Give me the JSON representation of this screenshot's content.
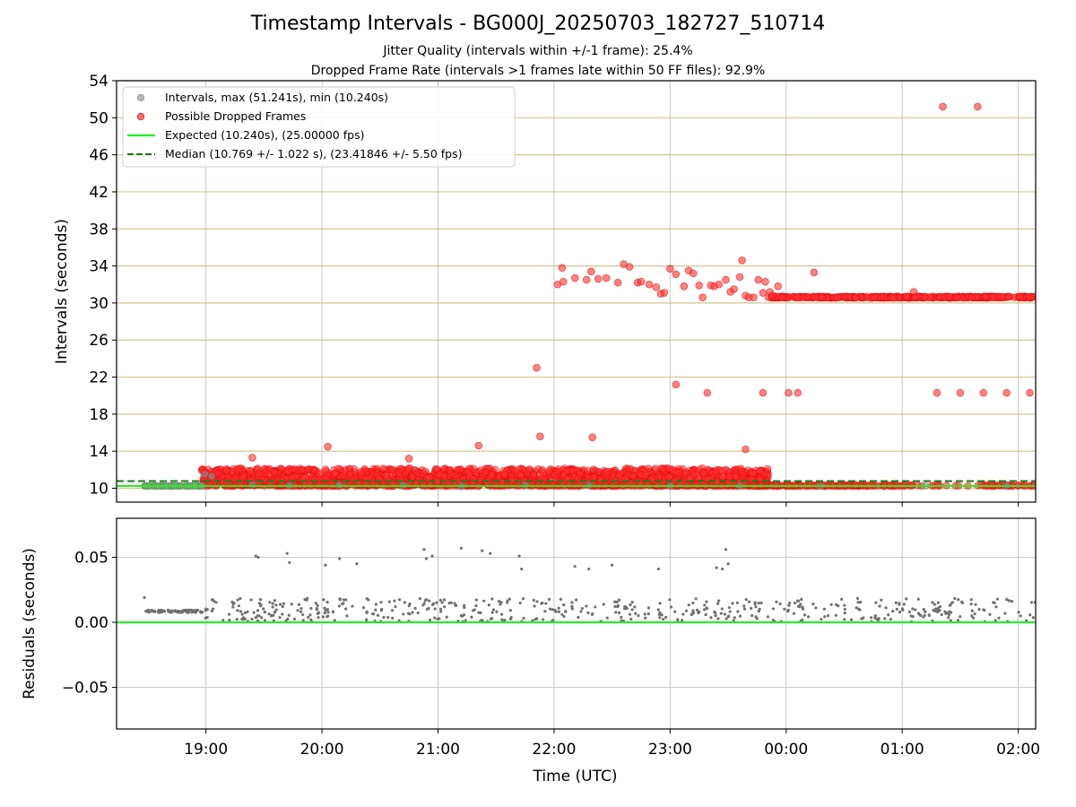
{
  "chart_data": [
    {
      "type": "scatter",
      "title": "Timestamp Intervals - BG000J_20250703_182727_510714",
      "subtitle_lines": [
        "Jitter Quality (intervals within +/-1 frame): 25.4%",
        "Dropped Frame Rate (intervals >1 frames late within 50 FF files): 92.9%"
      ],
      "ylabel": "Intervals (seconds)",
      "xlabel": "",
      "x_unit": "hours after 18:00 UTC on the plotted time axis",
      "xlim": [
        0.13,
        8.05
      ],
      "ylim": [
        8.5,
        54
      ],
      "yticks": [
        10,
        14,
        18,
        22,
        26,
        30,
        34,
        38,
        42,
        46,
        50,
        54
      ],
      "ytick_labels": [
        "10",
        "14",
        "18",
        "22",
        "26",
        "30",
        "34",
        "38",
        "42",
        "46",
        "50",
        "54"
      ],
      "xticks": [
        0.9,
        1.9,
        2.9,
        3.9,
        4.9,
        5.9,
        6.9,
        7.9
      ],
      "grid_horizontal_color": "#d4c490",
      "grid_vertical_color": "#c8c8c8",
      "legend_position": "top-left",
      "legend": [
        {
          "label": "Intervals, max (51.241s), min (10.240s)",
          "kind": "marker",
          "color": "#999999"
        },
        {
          "label": "Possible Dropped Frames",
          "kind": "marker",
          "color": "#ff5a5a"
        },
        {
          "label": "Expected (10.240s), (25.00000 fps)",
          "kind": "line",
          "color": "#22ee22"
        },
        {
          "label": "Median (10.769 +/- 1.022 s), (23.41846 +/- 5.50 fps)",
          "kind": "dashed",
          "color": "#1f7f1f"
        }
      ],
      "series": [
        {
          "name": "Intervals, max (51.241s), min (10.240s)",
          "color": "#808080",
          "points": [
            [
              0.38,
              10.24
            ],
            [
              0.45,
              10.24
            ],
            [
              0.52,
              10.24
            ],
            [
              0.6,
              10.24
            ],
            [
              0.68,
              10.24
            ],
            [
              0.76,
              10.24
            ],
            [
              0.86,
              10.24
            ],
            [
              0.89,
              11.5
            ],
            [
              0.95,
              11.3
            ],
            [
              1.3,
              10.4
            ],
            [
              1.62,
              10.3
            ],
            [
              2.05,
              10.3
            ],
            [
              2.6,
              10.3
            ],
            [
              3.1,
              10.2
            ],
            [
              3.65,
              10.3
            ],
            [
              4.2,
              10.3
            ],
            [
              4.9,
              10.24
            ],
            [
              5.5,
              10.24
            ],
            [
              6.2,
              10.24
            ],
            [
              7.1,
              10.24
            ],
            [
              7.8,
              10.24
            ]
          ]
        },
        {
          "name": "Possible Dropped Frames",
          "color": "#ff2020",
          "points": [
            [
              1.3,
              13.3
            ],
            [
              1.95,
              14.5
            ],
            [
              2.65,
              13.2
            ],
            [
              3.25,
              14.6
            ],
            [
              3.78,
              15.6
            ],
            [
              4.23,
              15.5
            ],
            [
              5.55,
              14.2
            ],
            [
              3.75,
              23.0
            ],
            [
              4.95,
              21.2
            ],
            [
              5.22,
              20.3
            ],
            [
              5.7,
              20.3
            ],
            [
              5.92,
              20.3
            ],
            [
              6.0,
              20.3
            ],
            [
              7.2,
              20.3
            ],
            [
              7.4,
              20.3
            ],
            [
              7.6,
              20.3
            ],
            [
              7.8,
              20.3
            ],
            [
              8.0,
              20.3
            ],
            [
              7.25,
              51.2
            ],
            [
              7.55,
              51.2
            ],
            [
              3.93,
              32.0
            ],
            [
              3.97,
              33.8
            ],
            [
              3.98,
              32.3
            ],
            [
              4.08,
              32.7
            ],
            [
              4.18,
              32.5
            ],
            [
              4.22,
              33.4
            ],
            [
              4.28,
              32.6
            ],
            [
              4.35,
              32.7
            ],
            [
              4.45,
              32.2
            ],
            [
              4.5,
              34.2
            ],
            [
              4.55,
              33.9
            ],
            [
              4.62,
              32.2
            ],
            [
              4.65,
              32.3
            ],
            [
              4.72,
              32.0
            ],
            [
              4.78,
              31.7
            ],
            [
              4.82,
              31.0
            ],
            [
              4.85,
              31.1
            ],
            [
              4.9,
              33.7
            ],
            [
              4.95,
              33.1
            ],
            [
              5.02,
              31.8
            ],
            [
              5.06,
              33.5
            ],
            [
              5.1,
              33.2
            ],
            [
              5.15,
              31.9
            ],
            [
              5.18,
              30.6
            ],
            [
              5.25,
              31.9
            ],
            [
              5.28,
              31.8
            ],
            [
              5.32,
              32.0
            ],
            [
              5.38,
              32.5
            ],
            [
              5.42,
              31.2
            ],
            [
              5.45,
              31.5
            ],
            [
              5.5,
              32.8
            ],
            [
              5.52,
              34.6
            ],
            [
              5.55,
              30.8
            ],
            [
              5.58,
              30.6
            ],
            [
              5.62,
              30.6
            ],
            [
              5.66,
              32.5
            ],
            [
              5.7,
              31.1
            ],
            [
              5.72,
              32.3
            ],
            [
              5.76,
              31.2
            ],
            [
              5.78,
              30.8
            ],
            [
              5.83,
              31.8
            ],
            [
              6.0,
              30.6
            ],
            [
              6.14,
              33.3
            ],
            [
              6.5,
              30.6
            ],
            [
              7.0,
              31.2
            ],
            [
              7.5,
              30.6
            ]
          ]
        },
        {
          "name": "Expected (10.240s), (25.00000 fps)",
          "color": "#22ee22",
          "y": 10.24
        },
        {
          "name": "Median (10.769 +/- 1.022 s), (23.41846 +/- 5.50 fps)",
          "color": "#1f7f1f",
          "y": 10.769
        }
      ]
    },
    {
      "type": "scatter",
      "title": "",
      "ylabel": "Residuals (seconds)",
      "xlabel": "Time (UTC)",
      "xlim": [
        0.13,
        8.05
      ],
      "ylim": [
        -0.082,
        0.08
      ],
      "yticks": [
        0.05,
        0.0,
        -0.05
      ],
      "ytick_labels": [
        "0.05",
        "0.00",
        "−0.05"
      ],
      "xticks": [
        0.9,
        1.9,
        2.9,
        3.9,
        4.9,
        5.9,
        6.9,
        7.9
      ],
      "xtick_labels": [
        "19:00",
        "20:00",
        "21:00",
        "22:00",
        "23:00",
        "00:00",
        "01:00",
        "02:00"
      ],
      "grid": true,
      "series": [
        {
          "name": "",
          "color": "#707070",
          "points": [
            [
              1.33,
              0.051
            ],
            [
              1.35,
              0.05
            ],
            [
              1.6,
              0.053
            ],
            [
              1.62,
              0.046
            ],
            [
              1.93,
              0.044
            ],
            [
              2.05,
              0.049
            ],
            [
              2.2,
              0.045
            ],
            [
              2.78,
              0.056
            ],
            [
              2.8,
              0.049
            ],
            [
              2.85,
              0.051
            ],
            [
              3.1,
              0.057
            ],
            [
              3.28,
              0.055
            ],
            [
              3.35,
              0.053
            ],
            [
              3.6,
              0.051
            ],
            [
              3.62,
              0.041
            ],
            [
              4.08,
              0.043
            ],
            [
              4.2,
              0.041
            ],
            [
              4.4,
              0.044
            ],
            [
              4.8,
              0.041
            ],
            [
              5.3,
              0.042
            ],
            [
              5.35,
              0.041
            ],
            [
              5.38,
              0.056
            ],
            [
              5.4,
              0.045
            ]
          ]
        },
        {
          "name": "",
          "color": "#22ee22",
          "y": 0.0
        }
      ]
    }
  ],
  "colors": {
    "dropped_fill": "#ff3030",
    "dropped_edge": "#dd0000",
    "interval_point": "#8c8c8c",
    "expected_line": "#22ee22",
    "median_line": "#1f7f1f",
    "residual_point": "#707070"
  }
}
